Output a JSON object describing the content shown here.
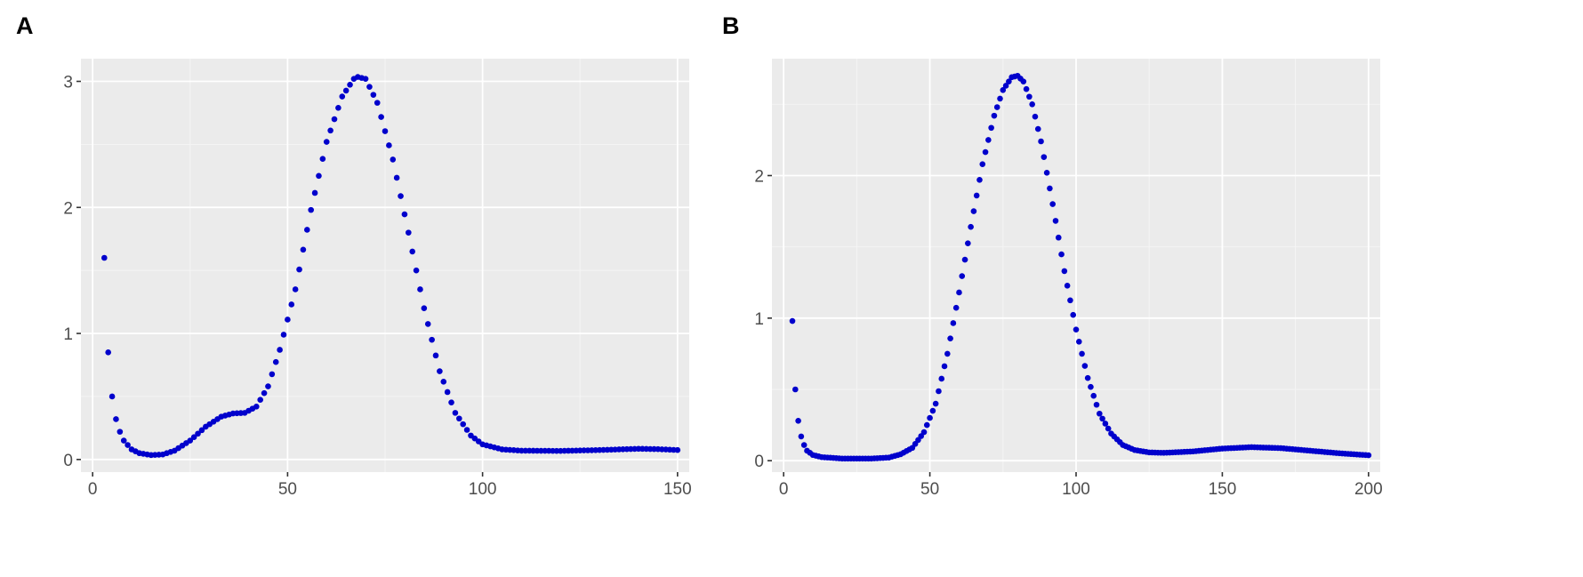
{
  "panels": [
    {
      "label": "A",
      "chart_data": {
        "type": "scatter",
        "title": "",
        "xlabel": "",
        "ylabel": "",
        "xlim": [
          -3,
          153
        ],
        "ylim": [
          -0.1,
          3.18
        ],
        "x_ticks": [
          0,
          50,
          100,
          150
        ],
        "y_ticks": [
          0,
          1,
          2,
          3
        ],
        "grid": true,
        "background": "#ebebeb",
        "point_color": "#0000cc",
        "knots": [
          [
            3,
            1.6
          ],
          [
            4,
            0.85
          ],
          [
            5,
            0.5
          ],
          [
            6,
            0.32
          ],
          [
            7,
            0.22
          ],
          [
            8,
            0.15
          ],
          [
            10,
            0.08
          ],
          [
            12,
            0.05
          ],
          [
            15,
            0.035
          ],
          [
            18,
            0.04
          ],
          [
            21,
            0.07
          ],
          [
            25,
            0.15
          ],
          [
            29,
            0.26
          ],
          [
            33,
            0.34
          ],
          [
            36,
            0.365
          ],
          [
            39,
            0.37
          ],
          [
            42,
            0.42
          ],
          [
            45,
            0.58
          ],
          [
            48,
            0.87
          ],
          [
            52,
            1.35
          ],
          [
            56,
            1.98
          ],
          [
            60,
            2.52
          ],
          [
            64,
            2.88
          ],
          [
            67,
            3.02
          ],
          [
            68,
            3.035
          ],
          [
            70,
            3.02
          ],
          [
            73,
            2.83
          ],
          [
            77,
            2.38
          ],
          [
            81,
            1.8
          ],
          [
            85,
            1.2
          ],
          [
            89,
            0.7
          ],
          [
            93,
            0.37
          ],
          [
            97,
            0.19
          ],
          [
            100,
            0.12
          ],
          [
            105,
            0.08
          ],
          [
            110,
            0.07
          ],
          [
            120,
            0.068
          ],
          [
            130,
            0.075
          ],
          [
            140,
            0.085
          ],
          [
            145,
            0.082
          ],
          [
            150,
            0.075
          ]
        ]
      }
    },
    {
      "label": "B",
      "chart_data": {
        "type": "scatter",
        "title": "",
        "xlabel": "",
        "ylabel": "",
        "xlim": [
          -4,
          204
        ],
        "ylim": [
          -0.08,
          2.82
        ],
        "x_ticks": [
          0,
          50,
          100,
          150,
          200
        ],
        "y_ticks": [
          0,
          1,
          2
        ],
        "grid": true,
        "background": "#ebebeb",
        "point_color": "#0000cc",
        "knots": [
          [
            3,
            0.98
          ],
          [
            4,
            0.5
          ],
          [
            5,
            0.28
          ],
          [
            6,
            0.17
          ],
          [
            7,
            0.11
          ],
          [
            8,
            0.07
          ],
          [
            10,
            0.04
          ],
          [
            13,
            0.025
          ],
          [
            20,
            0.015
          ],
          [
            30,
            0.015
          ],
          [
            36,
            0.022
          ],
          [
            40,
            0.045
          ],
          [
            44,
            0.09
          ],
          [
            48,
            0.2
          ],
          [
            52,
            0.4
          ],
          [
            56,
            0.75
          ],
          [
            60,
            1.18
          ],
          [
            64,
            1.64
          ],
          [
            68,
            2.08
          ],
          [
            72,
            2.42
          ],
          [
            75,
            2.6
          ],
          [
            78,
            2.69
          ],
          [
            80,
            2.7
          ],
          [
            82,
            2.66
          ],
          [
            85,
            2.5
          ],
          [
            88,
            2.24
          ],
          [
            92,
            1.8
          ],
          [
            96,
            1.33
          ],
          [
            100,
            0.92
          ],
          [
            104,
            0.58
          ],
          [
            108,
            0.33
          ],
          [
            112,
            0.19
          ],
          [
            116,
            0.11
          ],
          [
            120,
            0.075
          ],
          [
            125,
            0.058
          ],
          [
            130,
            0.055
          ],
          [
            140,
            0.065
          ],
          [
            150,
            0.085
          ],
          [
            160,
            0.095
          ],
          [
            170,
            0.088
          ],
          [
            180,
            0.07
          ],
          [
            190,
            0.052
          ],
          [
            200,
            0.038
          ]
        ]
      }
    }
  ]
}
